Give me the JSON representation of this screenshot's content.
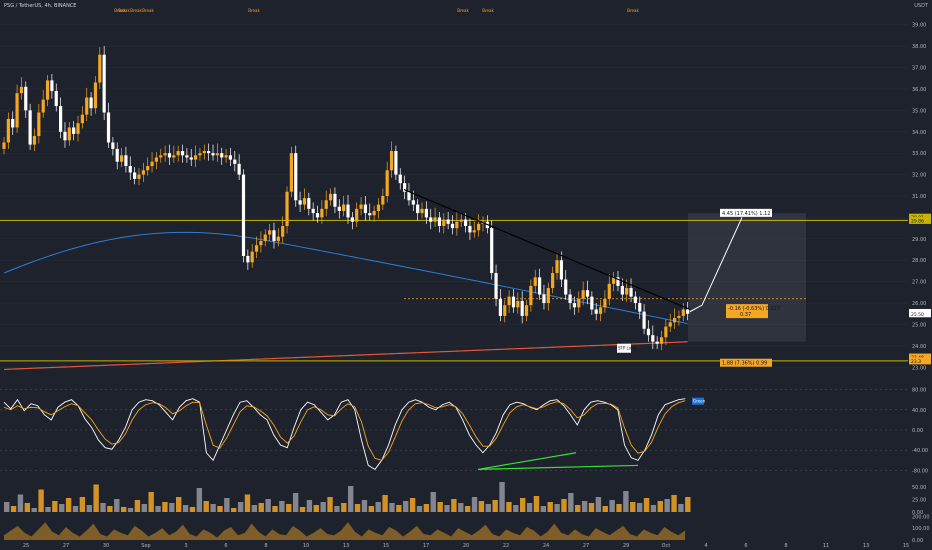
{
  "header": {
    "symbol": "PSG / TetherUS, 4h, BINANCE",
    "currency": "USDT"
  },
  "colors": {
    "background": "#1e222d",
    "up_candle": "#f5a623",
    "down_candle": "#ffffff",
    "teal_band": "#1f9db1",
    "long_ma": "#2b7fd6",
    "red_ma": "#e2563b",
    "horizontal_line": "#c8b400",
    "trend_line": "#000000",
    "projection": "#ffffff",
    "divergence": "#3ddc3d",
    "label_orange": "#f5a623"
  },
  "chart_data": [
    {
      "type": "candlestick",
      "panel": "price",
      "y_axis_ticks": [
        "39.00",
        "38.00",
        "37.00",
        "36.00",
        "35.00",
        "34.00",
        "33.00",
        "32.00",
        "31.00",
        "30.00",
        "29.00",
        "28.00",
        "27.00",
        "26.00",
        "25.00",
        "24.00",
        "23.00"
      ],
      "ylim": [
        22.5,
        39.5
      ],
      "price_tags": [
        {
          "text": "30.01",
          "value": 30.01
        },
        {
          "text": "29.86",
          "value": 29.86
        },
        {
          "text": "25.56",
          "value": 25.56
        },
        {
          "text": "25.50",
          "value": 25.5
        },
        {
          "text": "23.48",
          "value": 23.48
        },
        {
          "text": "23.3",
          "value": 23.3
        }
      ],
      "horizontal_levels": [
        29.86,
        23.3
      ],
      "resistance_levels": [
        26.2
      ],
      "close_series": [
        33.5,
        34.6,
        34.2,
        35.8,
        36.1,
        35.0,
        33.4,
        33.8,
        34.9,
        35.5,
        36.4,
        35.9,
        35.2,
        34.0,
        33.6,
        34.2,
        33.9,
        34.4,
        34.8,
        35.6,
        35.1,
        36.3,
        37.6,
        34.9,
        33.5,
        33.2,
        32.6,
        32.9,
        32.4,
        32.1,
        31.8,
        32.0,
        32.2,
        32.4,
        32.6,
        32.8,
        32.9,
        33.0,
        32.8,
        32.9,
        33.1,
        32.9,
        32.8,
        32.7,
        32.9,
        33.0,
        33.1,
        33.0,
        32.9,
        33.0,
        32.8,
        32.9,
        32.7,
        32.5,
        32.0,
        28.2,
        27.9,
        28.4,
        28.7,
        28.9,
        29.2,
        29.4,
        28.9,
        29.1,
        29.6,
        31.2,
        33.0,
        30.8,
        30.6,
        30.9,
        30.4,
        30.2,
        30.0,
        30.4,
        30.8,
        31.1,
        30.5,
        30.3,
        30.6,
        30.0,
        29.8,
        30.4,
        30.6,
        30.2,
        30.1,
        30.3,
        30.6,
        31.0,
        32.2,
        33.1,
        32.0,
        31.6,
        31.2,
        30.8,
        30.6,
        30.2,
        30.4,
        30.0,
        29.8,
        30.0,
        29.6,
        29.9,
        29.7,
        29.5,
        29.8,
        29.9,
        29.6,
        29.3,
        29.4,
        29.7,
        29.8,
        29.5,
        27.4,
        26.2,
        25.4,
        25.9,
        26.3,
        25.8,
        26.1,
        25.4,
        25.9,
        26.8,
        27.2,
        26.4,
        26.0,
        26.7,
        27.4,
        28.0,
        27.1,
        26.4,
        26.0,
        25.8,
        26.2,
        26.6,
        26.3,
        25.7,
        25.5,
        25.8,
        26.2,
        26.9,
        27.2,
        26.8,
        26.4,
        26.7,
        26.3,
        26.0,
        25.6,
        24.8,
        24.5,
        24.2,
        24.1,
        24.4,
        24.9,
        25.1,
        25.3,
        25.4,
        25.7,
        25.5
      ],
      "annotations": [
        {
          "text": "Break",
          "kind": "marker"
        },
        {
          "text": "Break",
          "kind": "marker"
        },
        {
          "text": "Break",
          "kind": "marker"
        },
        {
          "text": "Break",
          "kind": "marker"
        },
        {
          "text": "Break",
          "kind": "marker"
        },
        {
          "text": "Break",
          "kind": "marker"
        },
        {
          "text": "Break",
          "kind": "marker"
        },
        {
          "text": "Break",
          "kind": "marker"
        }
      ],
      "labels": {
        "projection": "4.45 (17.41%) 1.12",
        "risk_box": "-0.16 (-0.63%) 0.027",
        "risk_box_sub": "0.37",
        "stop": "1.88 (7.36%) 0.99",
        "sfp_long": "SFP Long"
      }
    },
    {
      "type": "line",
      "panel": "oscillator",
      "y_axis_ticks": [
        "80.00",
        "40.00",
        "0.00",
        "-40.00",
        "-80.00"
      ],
      "ylim": [
        -95,
        95
      ],
      "fast": [
        55,
        42,
        60,
        38,
        52,
        48,
        30,
        20,
        45,
        55,
        60,
        48,
        22,
        5,
        -20,
        -35,
        -38,
        -20,
        5,
        40,
        55,
        60,
        58,
        50,
        35,
        20,
        45,
        58,
        62,
        55,
        -45,
        -60,
        -30,
        0,
        30,
        55,
        58,
        45,
        30,
        20,
        -10,
        -30,
        -35,
        5,
        40,
        55,
        50,
        35,
        20,
        30,
        55,
        60,
        40,
        -20,
        -70,
        -78,
        -60,
        -30,
        10,
        40,
        55,
        60,
        55,
        45,
        40,
        50,
        55,
        45,
        20,
        -10,
        -30,
        -45,
        -30,
        -5,
        30,
        50,
        55,
        52,
        45,
        40,
        50,
        58,
        60,
        48,
        30,
        10,
        40,
        55,
        58,
        55,
        50,
        40,
        -30,
        -55,
        -60,
        -40,
        -10,
        30,
        50,
        55,
        60,
        62
      ],
      "slow": [
        45,
        40,
        48,
        42,
        45,
        44,
        36,
        30,
        38,
        46,
        52,
        48,
        34,
        20,
        0,
        -18,
        -28,
        -25,
        -8,
        20,
        40,
        50,
        54,
        52,
        44,
        32,
        38,
        48,
        55,
        54,
        10,
        -30,
        -36,
        -16,
        10,
        36,
        48,
        46,
        38,
        28,
        10,
        -14,
        -26,
        -12,
        16,
        40,
        46,
        40,
        30,
        28,
        42,
        52,
        46,
        16,
        -32,
        -56,
        -60,
        -44,
        -14,
        18,
        40,
        52,
        54,
        50,
        44,
        46,
        50,
        46,
        32,
        10,
        -14,
        -32,
        -32,
        -16,
        10,
        34,
        46,
        50,
        46,
        42,
        46,
        52,
        56,
        52,
        40,
        24,
        30,
        44,
        52,
        53,
        51,
        44,
        4,
        -30,
        -46,
        -42,
        -24,
        6,
        32,
        46,
        54,
        58
      ],
      "divergence_lines": 2,
      "tag": "Green"
    },
    {
      "type": "bar",
      "panel": "volume",
      "y_axis_ticks": [
        "50.00",
        "25.00",
        "0.00"
      ],
      "values": [
        20,
        12,
        35,
        18,
        8,
        45,
        10,
        22,
        16,
        28,
        12,
        30,
        14,
        55,
        18,
        12,
        26,
        10,
        8,
        24,
        16,
        40,
        12,
        20,
        18,
        30,
        14,
        10,
        48,
        22,
        16,
        12,
        28,
        8,
        20,
        35,
        14,
        18,
        26,
        12,
        22,
        16,
        38,
        10,
        24,
        14,
        20,
        30,
        12,
        18,
        52,
        16,
        24,
        12,
        20,
        34,
        18,
        14,
        22,
        28,
        12,
        16,
        40,
        20,
        14,
        26,
        18,
        12,
        30,
        22,
        16,
        24,
        60,
        20,
        14,
        28,
        18,
        32,
        12,
        20,
        16,
        26,
        38,
        14,
        22,
        18,
        30,
        12,
        24,
        16,
        42,
        20,
        18,
        28,
        14,
        22,
        26,
        34,
        16,
        30
      ],
      "ylim": [
        0,
        60
      ]
    },
    {
      "type": "area",
      "panel": "bottom",
      "y_axis_ticks": [
        "200.00",
        "100.00",
        "0.00"
      ],
      "values": [
        40,
        80,
        120,
        60,
        30,
        90,
        150,
        70,
        40,
        110,
        60,
        30,
        80,
        140,
        50,
        30,
        90,
        60,
        40,
        120,
        80,
        30,
        60,
        100,
        40,
        70,
        130,
        50,
        30,
        90,
        60,
        20,
        80,
        110,
        40,
        60,
        140,
        70,
        30,
        90,
        50,
        40,
        120,
        80,
        30,
        60,
        100,
        50,
        40,
        80,
        150,
        70,
        30,
        90,
        60,
        40,
        110,
        80,
        30,
        70,
        120,
        50,
        40,
        90,
        60,
        30,
        100,
        70,
        40,
        80,
        130,
        50,
        30,
        90,
        60,
        40,
        110,
        80,
        30,
        70,
        140,
        60,
        40,
        90,
        50,
        30,
        100,
        70,
        40,
        80,
        120,
        50,
        30,
        90,
        60,
        40,
        110,
        70,
        40,
        80
      ],
      "ylim": [
        0,
        220
      ]
    }
  ],
  "x_axis": {
    "labels": [
      "25",
      "27",
      "30",
      "Sep",
      "3",
      "6",
      "8",
      "10",
      "13",
      "15",
      "17",
      "20",
      "22",
      "24",
      "27",
      "29",
      "Oct",
      "4",
      "6",
      "8",
      "11",
      "13",
      "15"
    ]
  }
}
